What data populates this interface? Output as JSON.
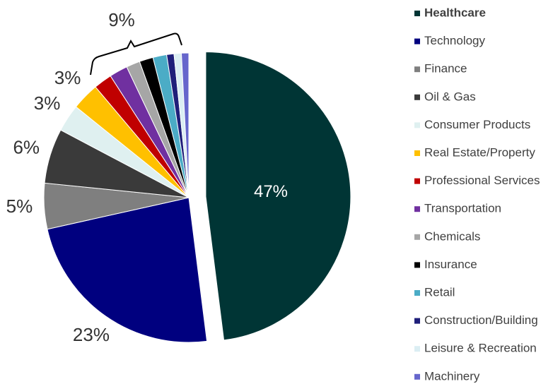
{
  "chart_data": {
    "type": "pie",
    "categories": [
      "Healthcare",
      "Technology",
      "Finance",
      "Oil & Gas",
      "Consumer Products",
      "Real Estate/Property",
      "Professional Services",
      "Transportation",
      "Chemicals",
      "Insurance",
      "Retail",
      "Construction/Building",
      "Leisure & Recreation",
      "Machinery"
    ],
    "values": [
      47,
      23,
      5,
      6,
      3,
      3,
      2,
      2,
      1.5,
      1.5,
      1.5,
      0.8,
      0.8,
      0.8
    ],
    "value_labels": [
      "47%",
      "23%",
      "5%",
      "6%",
      "3%",
      "3%",
      null,
      null,
      null,
      null,
      null,
      null,
      null,
      null
    ],
    "colors": [
      "#003535",
      "#00007f",
      "#7f7f7f",
      "#3a3a3a",
      "#dff0f0",
      "#ffc000",
      "#c00000",
      "#7030a0",
      "#a6a6a6",
      "#000000",
      "#4bacc6",
      "#1f1f7a",
      "#dbeef3",
      "#6666cc"
    ],
    "annotation": "9%"
  }
}
